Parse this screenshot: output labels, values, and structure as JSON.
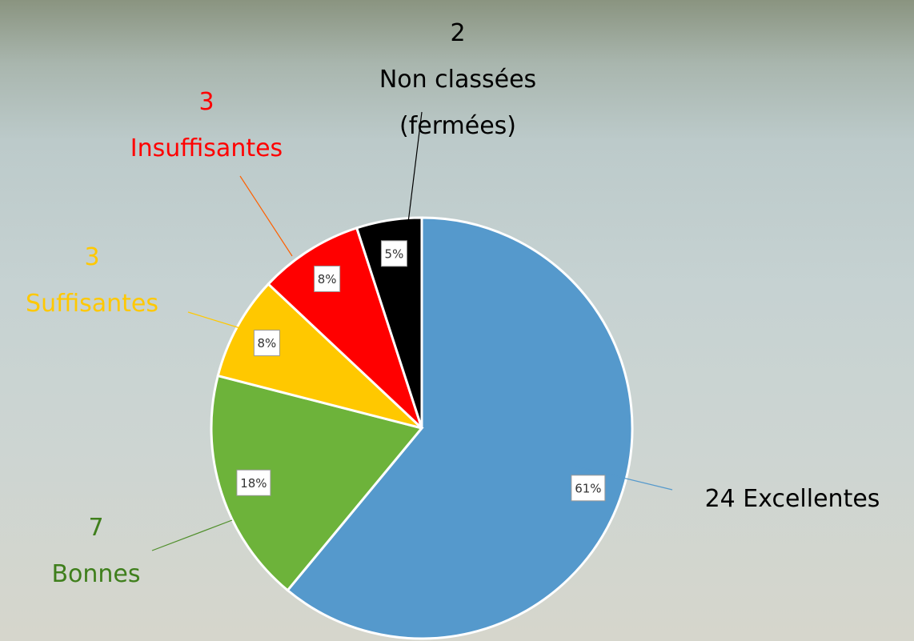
{
  "chart_data": {
    "type": "pie",
    "categories": [
      "Excellentes",
      "Bonnes",
      "Suffisantes",
      "Insuffisantes",
      "Non classées (fermées)"
    ],
    "counts": [
      24,
      7,
      3,
      3,
      2
    ],
    "values": [
      61,
      18,
      8,
      8,
      5
    ],
    "value_labels": [
      "61%",
      "18%",
      "8%",
      "8%",
      "5%"
    ],
    "colors": [
      "#5599cc",
      "#6db33a",
      "#ffc800",
      "#ff0000",
      "#000000"
    ],
    "label_colors": [
      "#000000",
      "#3f7f1c",
      "#ffc800",
      "#ff0000",
      "#000000"
    ]
  }
}
